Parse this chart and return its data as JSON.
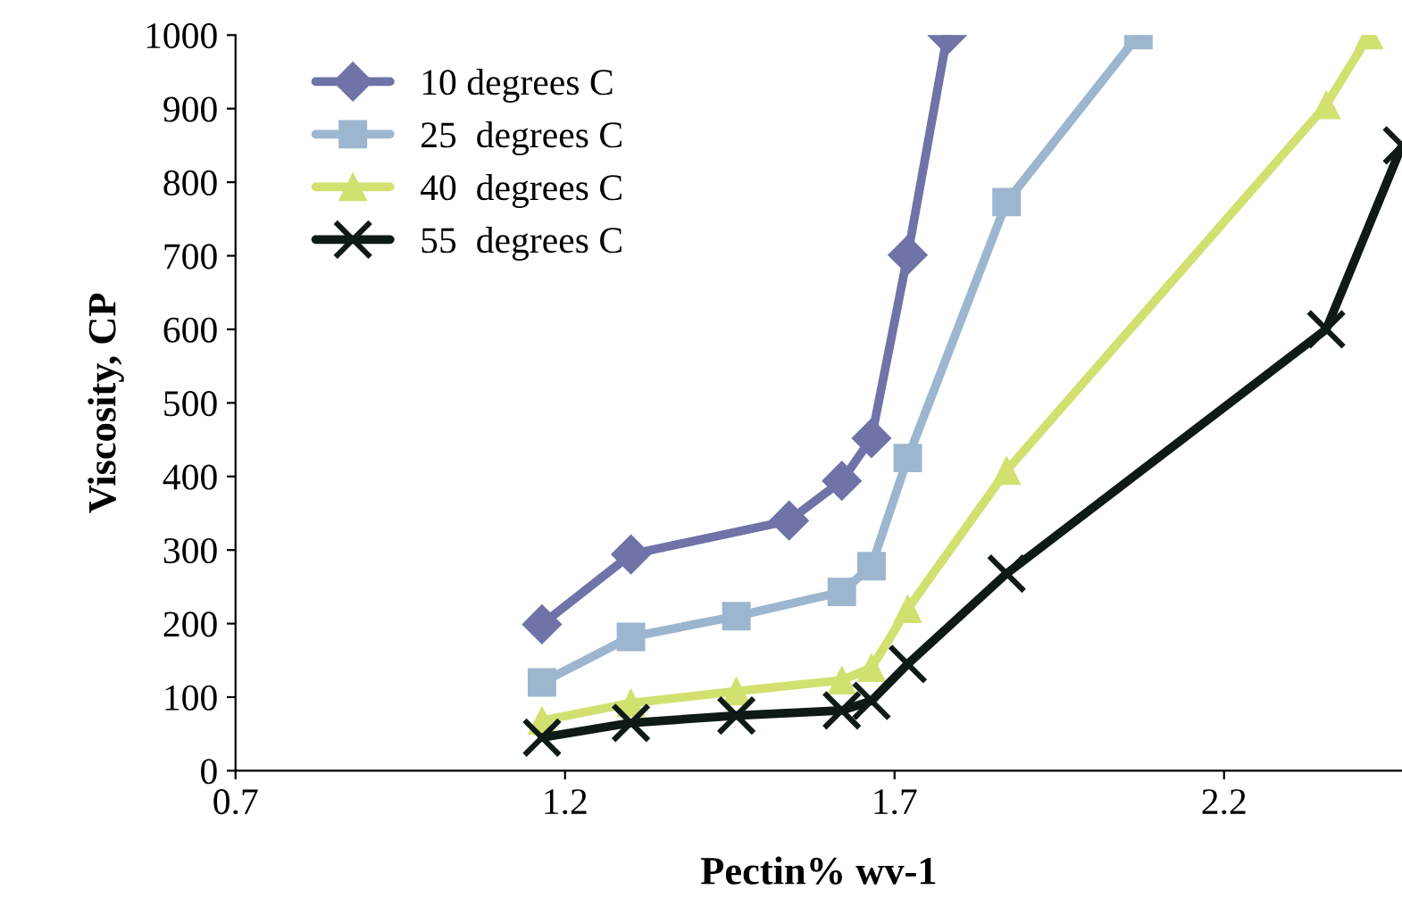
{
  "chart_data": {
    "type": "line",
    "xlabel": "Pectin% wv-1",
    "ylabel": "Viscosity, CP",
    "xlim": [
      0.7,
      2.47
    ],
    "xticks": [
      0.7,
      1.2,
      1.7,
      2.2
    ],
    "ylim": [
      0,
      1000
    ],
    "yticks": [
      0,
      100,
      200,
      300,
      400,
      500,
      600,
      700,
      800,
      900,
      1000
    ],
    "grid": false,
    "legend": "top left",
    "line_style": "solid",
    "series": [
      {
        "name": "10 degrees C",
        "color": "#6f73a8",
        "marker": "diamond",
        "x": [
          1.165,
          1.3,
          1.54,
          1.62,
          1.665,
          1.72,
          1.78
        ],
        "values": [
          199,
          294,
          340,
          394,
          452,
          701,
          1000
        ]
      },
      {
        "name": "25  degrees C",
        "color": "#9cb6cf",
        "marker": "square",
        "x": [
          1.165,
          1.3,
          1.46,
          1.62,
          1.665,
          1.72,
          1.87,
          2.07
        ],
        "values": [
          120,
          182,
          210,
          243,
          278,
          425,
          773,
          1000
        ]
      },
      {
        "name": "40  degrees C",
        "color": "#d2e070",
        "marker": "triangle",
        "x": [
          1.165,
          1.3,
          1.46,
          1.62,
          1.665,
          1.72,
          1.87,
          2.355,
          2.42
        ],
        "values": [
          68,
          92,
          108,
          123,
          140,
          220,
          408,
          905,
          1000
        ]
      },
      {
        "name": "55  degrees C",
        "color": "#0f1a14",
        "marker": "cross",
        "x": [
          1.165,
          1.3,
          1.46,
          1.62,
          1.665,
          1.72,
          1.87,
          2.355,
          2.47
        ],
        "values": [
          45,
          65,
          75,
          82,
          95,
          145,
          268,
          600,
          850
        ]
      }
    ]
  }
}
